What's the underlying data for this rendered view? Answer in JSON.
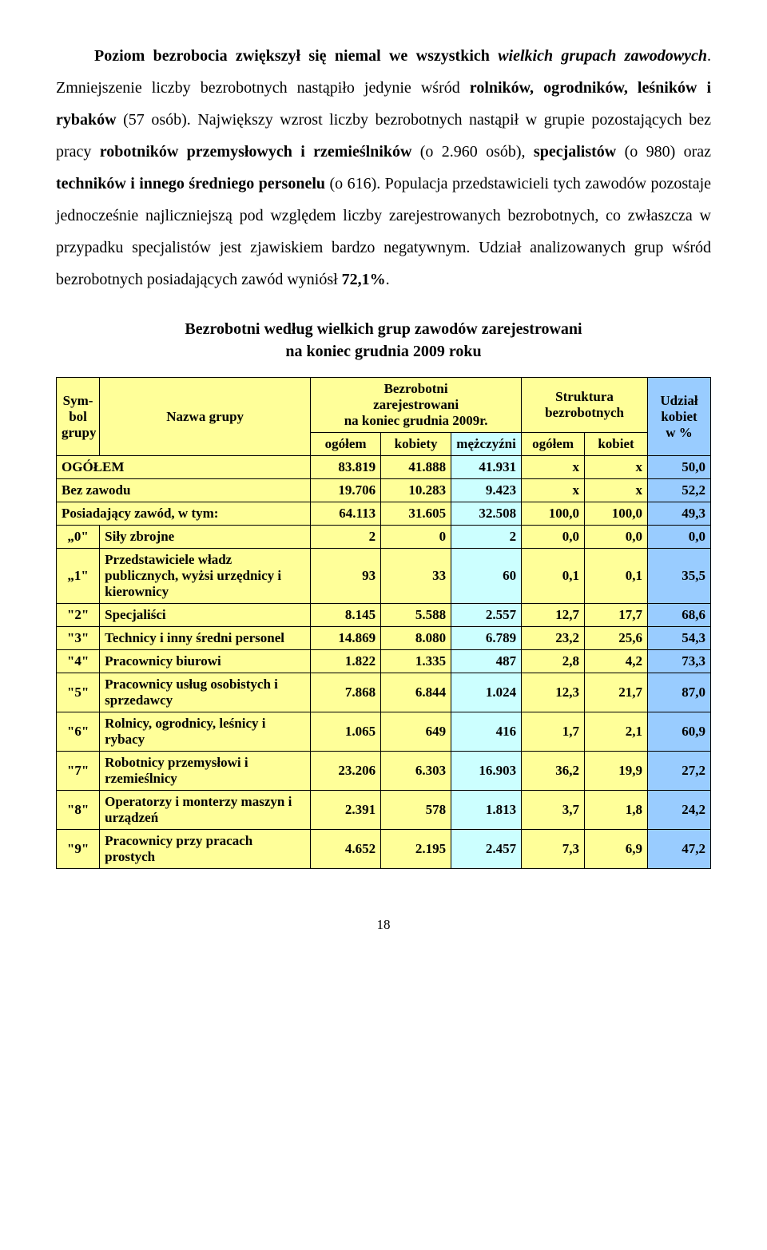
{
  "colors": {
    "bg_yellow": "#ffff99",
    "bg_sky": "#ccffff",
    "bg_blue": "#99ccff",
    "text": "#000000"
  },
  "paragraph": {
    "t1": "Poziom bezrobocia zwiększył się niemal we wszystkich ",
    "t1i": "wielkich grupach zawodowych",
    "t1b": ". Zmniejszenie liczby bezrobotnych nastąpiło jedynie wśród ",
    "t1c": "rolników, ogrodników, leśników i rybaków",
    "t1d": " (57 osób). Największy wzrost liczby bezrobotnych nastąpił w grupie pozostających bez pracy ",
    "t1e": "robotników przemysłowych i rzemieślników",
    "t1f": " (o 2.960 osób), ",
    "t1g": "specjalistów",
    "t1h": " (o 980) oraz ",
    "t1i2": "techników i innego średniego personelu",
    "t1j": " (o 616). Populacja przedstawicieli tych zawodów pozostaje jednocześnie najliczniejszą pod względem liczby zarejestrowanych bezrobotnych, co zwłaszcza w przypadku specjalistów jest zjawiskiem bardzo negatywnym. Udział analizowanych grup wśród bezrobotnych posiadających zawód wyniósł ",
    "t1k": "72,1%",
    "t1l": "."
  },
  "table_title_l1": "Bezrobotni według wielkich grup zawodów zarejestrowani",
  "table_title_l2": "na koniec grudnia 2009 roku",
  "headers": {
    "sym": "Sym­bol grupy",
    "name": "Nazwa grupy",
    "bezr_l1": "Bezrobotni",
    "bezr_l2": "zarejestrowani",
    "bezr_l3": "na koniec grudnia 2009r.",
    "str_l1": "Struktura",
    "str_l2": "bezrobotnych",
    "udz_l1": "Udział",
    "udz_l2": "kobiet",
    "udz_l3": "w %",
    "ogolem": "ogółem",
    "kobiety": "kobiety",
    "mezcz": "mężczyźni",
    "kobiet": "kobiet"
  },
  "rows": [
    {
      "sym": "",
      "name": "OGÓŁEM",
      "v": [
        "83.819",
        "41.888",
        "41.931",
        "x",
        "x",
        "50,0"
      ],
      "span2": true
    },
    {
      "sym": "",
      "name": "Bez zawodu",
      "v": [
        "19.706",
        "10.283",
        "9.423",
        "x",
        "x",
        "52,2"
      ],
      "span2": true
    },
    {
      "sym": "",
      "name": "Posiadający zawód, w tym:",
      "v": [
        "64.113",
        "31.605",
        "32.508",
        "100,0",
        "100,0",
        "49,3"
      ],
      "span2": true
    },
    {
      "sym": "„0\"",
      "name": "Siły zbrojne",
      "v": [
        "2",
        "0",
        "2",
        "0,0",
        "0,0",
        "0,0"
      ]
    },
    {
      "sym": "„1\"",
      "name": "Przedstawiciele władz publicznych, wyżsi urzędnicy i kierownicy",
      "v": [
        "93",
        "33",
        "60",
        "0,1",
        "0,1",
        "35,5"
      ]
    },
    {
      "sym": "\"2\"",
      "name": "Specjaliści",
      "v": [
        "8.145",
        "5.588",
        "2.557",
        "12,7",
        "17,7",
        "68,6"
      ]
    },
    {
      "sym": "\"3\"",
      "name": "Technicy i inny średni personel",
      "v": [
        "14.869",
        "8.080",
        "6.789",
        "23,2",
        "25,6",
        "54,3"
      ]
    },
    {
      "sym": "\"4\"",
      "name": "Pracownicy biurowi",
      "v": [
        "1.822",
        "1.335",
        "487",
        "2,8",
        "4,2",
        "73,3"
      ]
    },
    {
      "sym": "\"5\"",
      "name": "Pracownicy usług osobistych i sprzedawcy",
      "v": [
        "7.868",
        "6.844",
        "1.024",
        "12,3",
        "21,7",
        "87,0"
      ]
    },
    {
      "sym": "\"6\"",
      "name": "Rolnicy, ogrodnicy, leśnicy i rybacy",
      "v": [
        "1.065",
        "649",
        "416",
        "1,7",
        "2,1",
        "60,9"
      ]
    },
    {
      "sym": "\"7\"",
      "name": "Robotnicy przemysłowi i rzemieślnicy",
      "v": [
        "23.206",
        "6.303",
        "16.903",
        "36,2",
        "19,9",
        "27,2"
      ]
    },
    {
      "sym": "\"8\"",
      "name": "Operatorzy i monterzy maszyn i urządzeń",
      "v": [
        "2.391",
        "578",
        "1.813",
        "3,7",
        "1,8",
        "24,2"
      ]
    },
    {
      "sym": "\"9\"",
      "name": "Pracownicy przy pracach prostych",
      "v": [
        "4.652",
        "2.195",
        "2.457",
        "7,3",
        "6,9",
        "47,2"
      ]
    }
  ],
  "page_number": "18"
}
